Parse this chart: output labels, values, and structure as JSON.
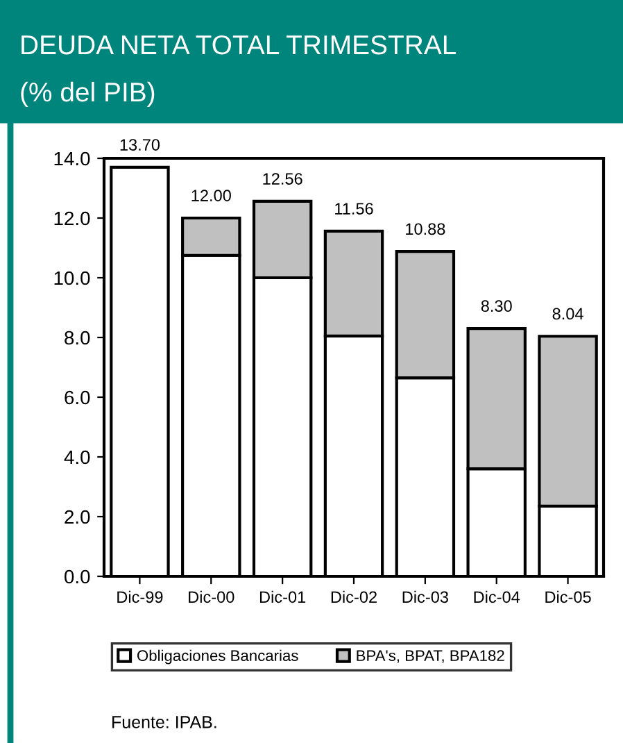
{
  "chart_data": {
    "type": "bar",
    "title": "DEUDA NETA TOTAL TRIMESTRAL",
    "subtitle": "(% del PIB)",
    "categories": [
      "Dic-99",
      "Dic-00",
      "Dic-01",
      "Dic-02",
      "Dic-03",
      "Dic-04",
      "Dic-05"
    ],
    "stacked": true,
    "series": [
      {
        "name": "Obligaciones Bancarias",
        "color": "#ffffff",
        "values": [
          13.7,
          10.75,
          10.0,
          8.05,
          6.65,
          3.6,
          2.35
        ]
      },
      {
        "name": "BPA's, BPAT, BPA182",
        "color": "#c0c0c0",
        "values": [
          null,
          1.25,
          2.56,
          3.51,
          4.23,
          4.7,
          5.69
        ]
      }
    ],
    "totals": [
      "13.70",
      "12.00",
      "12.56",
      "11.56",
      "10.88",
      "8.30",
      "8.04"
    ],
    "ylim": [
      0,
      14
    ],
    "yticks": [
      {
        "value": 0,
        "label": "0.0"
      },
      {
        "value": 2,
        "label": "2.0"
      },
      {
        "value": 4,
        "label": "4.0"
      },
      {
        "value": 6,
        "label": "6.0"
      },
      {
        "value": 8,
        "label": "8.0"
      },
      {
        "value": 10,
        "label": "10.0"
      },
      {
        "value": 12,
        "label": "12.0"
      },
      {
        "value": 14,
        "label": "14.0"
      }
    ],
    "grid": false,
    "legend": "bottom",
    "annotations": [
      "Fuente: IPAB."
    ]
  }
}
